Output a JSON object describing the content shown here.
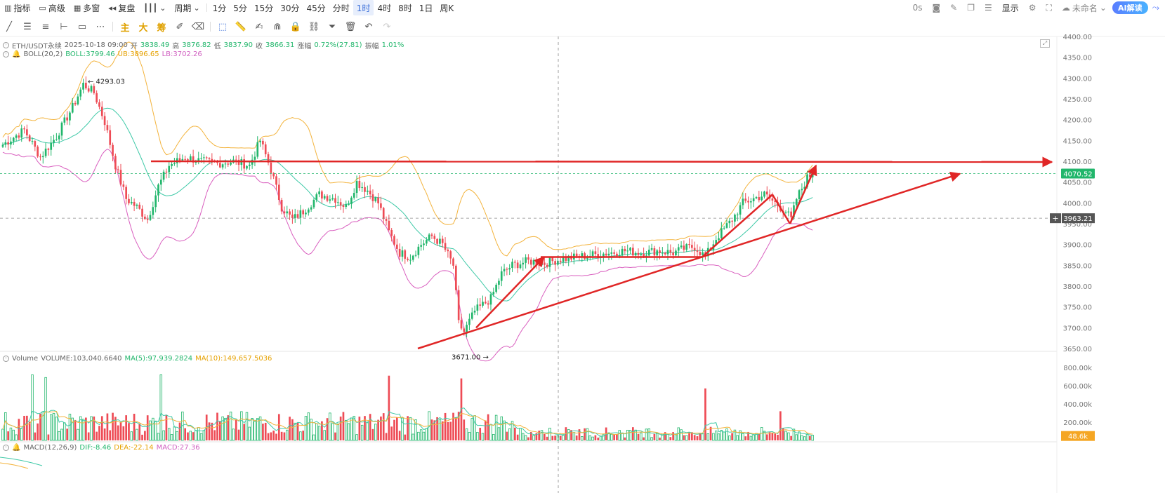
{
  "toolbar": {
    "indicators": "指标",
    "advanced": "高级",
    "multi_window": "多窗",
    "replay": "复盘",
    "period_label": "周期",
    "periods": [
      "1分",
      "5分",
      "15分",
      "30分",
      "45分",
      "分时",
      "1时",
      "4时",
      "8时",
      "1日",
      "周K"
    ],
    "active_period": "1时",
    "latency": "0s",
    "display": "显示",
    "unnamed": "未命名",
    "ai_read": "AI解读"
  },
  "drawing_tools": {
    "main": "主",
    "large": "大",
    "chip": "筹"
  },
  "legend": {
    "symbol": "ETH/USDT永续",
    "datetime": "2025-10-18 09:00",
    "open_label": "开",
    "open": "3838.49",
    "high_label": "高",
    "high": "3876.82",
    "low_label": "低",
    "low": "3837.90",
    "close_label": "收",
    "close": "3866.31",
    "change_label": "涨幅",
    "change": "0.72%(27.81)",
    "amp_label": "振幅",
    "amp": "1.01%",
    "boll_name": "BOLL(20,2)",
    "boll_mid": "BOLL:3799.46",
    "boll_ub": "UB:3896.65",
    "boll_lb": "LB:3702.26",
    "vol_name": "Volume",
    "vol_value": "VOLUME:103,040.6640",
    "vol_ma5": "MA(5):97,939.2824",
    "vol_ma10": "MA(10):149,657.5036",
    "macd_name": "MACD(12,26,9)",
    "macd_dif": "DIF:-8.46",
    "macd_dea": "DEA:-22.14",
    "macd_val": "MACD:27.36"
  },
  "colors": {
    "up": "#21b66b",
    "down": "#ee4b55",
    "boll_mid": "#3ec9a7",
    "boll_ub": "#f3b33c",
    "boll_lb": "#d95fbf",
    "annotation": "#e02626",
    "price_tag_last": "#21b66b",
    "price_tag_cross": "#555555",
    "vol_tag": "#f5a623"
  },
  "chart_data": {
    "type": "candlestick",
    "price_axis": {
      "ylim": [
        3650,
        4400
      ],
      "ticks": [
        "3650.00",
        "3700.00",
        "3750.00",
        "3800.00",
        "3850.00",
        "3900.00",
        "3950.00",
        "4000.00",
        "4050.00",
        "4100.00",
        "4150.00",
        "4200.00",
        "4250.00",
        "4300.00",
        "4350.00",
        "4400.00"
      ]
    },
    "volume_axis": {
      "ylim": [
        0,
        800000
      ],
      "ticks": [
        "200.00k",
        "400.00k",
        "600.00k",
        "800.00k"
      ]
    },
    "last_price": "4070.52",
    "crosshair_price": "3963.21",
    "current_volume_tag": "48.6k",
    "annotations_text": {
      "high_mark": "4293.03",
      "low_mark": "3671.00"
    },
    "marked_high": 4293.03,
    "marked_low": 3671.0,
    "close_path_keypoints": [
      [
        0,
        4140
      ],
      [
        8,
        4175
      ],
      [
        14,
        4110
      ],
      [
        20,
        4160
      ],
      [
        26,
        4230
      ],
      [
        30,
        4285
      ],
      [
        34,
        4265
      ],
      [
        38,
        4195
      ],
      [
        42,
        4090
      ],
      [
        46,
        4010
      ],
      [
        50,
        3990
      ],
      [
        54,
        3960
      ],
      [
        58,
        4040
      ],
      [
        62,
        4090
      ],
      [
        68,
        4110
      ],
      [
        74,
        4100
      ],
      [
        80,
        4095
      ],
      [
        86,
        4100
      ],
      [
        92,
        4090
      ],
      [
        96,
        4150
      ],
      [
        100,
        4080
      ],
      [
        104,
        3990
      ],
      [
        108,
        3960
      ],
      [
        112,
        3980
      ],
      [
        118,
        4020
      ],
      [
        124,
        4010
      ],
      [
        128,
        3990
      ],
      [
        132,
        4050
      ],
      [
        136,
        4030
      ],
      [
        140,
        4000
      ],
      [
        144,
        3930
      ],
      [
        148,
        3880
      ],
      [
        152,
        3870
      ],
      [
        156,
        3900
      ],
      [
        160,
        3920
      ],
      [
        164,
        3900
      ],
      [
        168,
        3850
      ],
      [
        170,
        3710
      ],
      [
        172,
        3690
      ],
      [
        176,
        3740
      ],
      [
        182,
        3770
      ],
      [
        186,
        3830
      ],
      [
        190,
        3850
      ],
      [
        196,
        3860
      ],
      [
        202,
        3855
      ],
      [
        208,
        3865
      ],
      [
        214,
        3870
      ],
      [
        220,
        3875
      ],
      [
        226,
        3880
      ],
      [
        232,
        3885
      ],
      [
        238,
        3880
      ],
      [
        244,
        3885
      ],
      [
        250,
        3880
      ],
      [
        254,
        3890
      ],
      [
        258,
        3895
      ],
      [
        262,
        3870
      ],
      [
        266,
        3915
      ],
      [
        272,
        3960
      ],
      [
        276,
        4000
      ],
      [
        280,
        4010
      ],
      [
        284,
        4020
      ],
      [
        288,
        4000
      ],
      [
        292,
        3980
      ],
      [
        294,
        3960
      ],
      [
        296,
        4010
      ],
      [
        300,
        4060
      ],
      [
        302,
        4070
      ]
    ],
    "volume_highlights": [
      {
        "i": 11,
        "v": 720000
      },
      {
        "i": 16,
        "v": 690000
      },
      {
        "i": 59,
        "v": 720000
      },
      {
        "i": 144,
        "v": 710000
      },
      {
        "i": 171,
        "v": 680000
      },
      {
        "i": 262,
        "v": 570000
      },
      {
        "i": 290,
        "v": 320000
      }
    ]
  }
}
